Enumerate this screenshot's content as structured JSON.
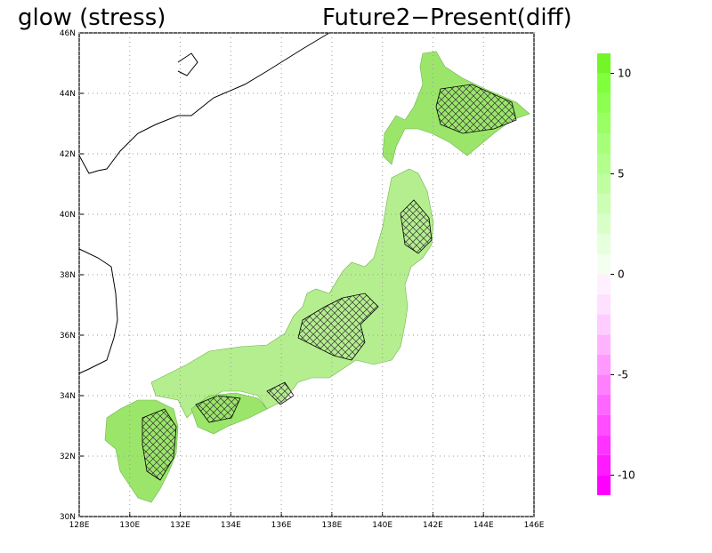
{
  "title_left": "glow (stress)",
  "title_right": "Future2−Present(diff)",
  "map": {
    "xlim": [
      128,
      146
    ],
    "ylim": [
      30,
      46
    ],
    "xticks": [
      {
        "value": 128,
        "label": "128E"
      },
      {
        "value": 130,
        "label": "130E"
      },
      {
        "value": 132,
        "label": "132E"
      },
      {
        "value": 134,
        "label": "134E"
      },
      {
        "value": 136,
        "label": "136E"
      },
      {
        "value": 138,
        "label": "138E"
      },
      {
        "value": 140,
        "label": "140E"
      },
      {
        "value": 142,
        "label": "142E"
      },
      {
        "value": 144,
        "label": "144E"
      },
      {
        "value": 146,
        "label": "146E"
      }
    ],
    "yticks": [
      {
        "value": 30,
        "label": "30N"
      },
      {
        "value": 32,
        "label": "32N"
      },
      {
        "value": 34,
        "label": "34N"
      },
      {
        "value": 36,
        "label": "36N"
      },
      {
        "value": 38,
        "label": "38N"
      },
      {
        "value": 40,
        "label": "40N"
      },
      {
        "value": 42,
        "label": "42N"
      },
      {
        "value": 44,
        "label": "44N"
      },
      {
        "value": 46,
        "label": "46N"
      }
    ],
    "grid": true
  },
  "colorbar": {
    "lim": [
      -11,
      11
    ],
    "ticks": [
      10,
      5,
      0,
      -5,
      -10
    ],
    "colors": [
      "#ff00ff",
      "#ff1aff",
      "#ff33ff",
      "#ff4dff",
      "#ff66ff",
      "#ff80ff",
      "#ff99ff",
      "#ffb3ff",
      "#ffccff",
      "#ffe0ff",
      "#fff0ff",
      "#f4fff0",
      "#e6ffdc",
      "#d9ffc8",
      "#ccffb4",
      "#bfffa0",
      "#b3ff8c",
      "#a6ff78",
      "#99ff64",
      "#8cff50",
      "#80ff3c",
      "#73f528"
    ]
  }
}
